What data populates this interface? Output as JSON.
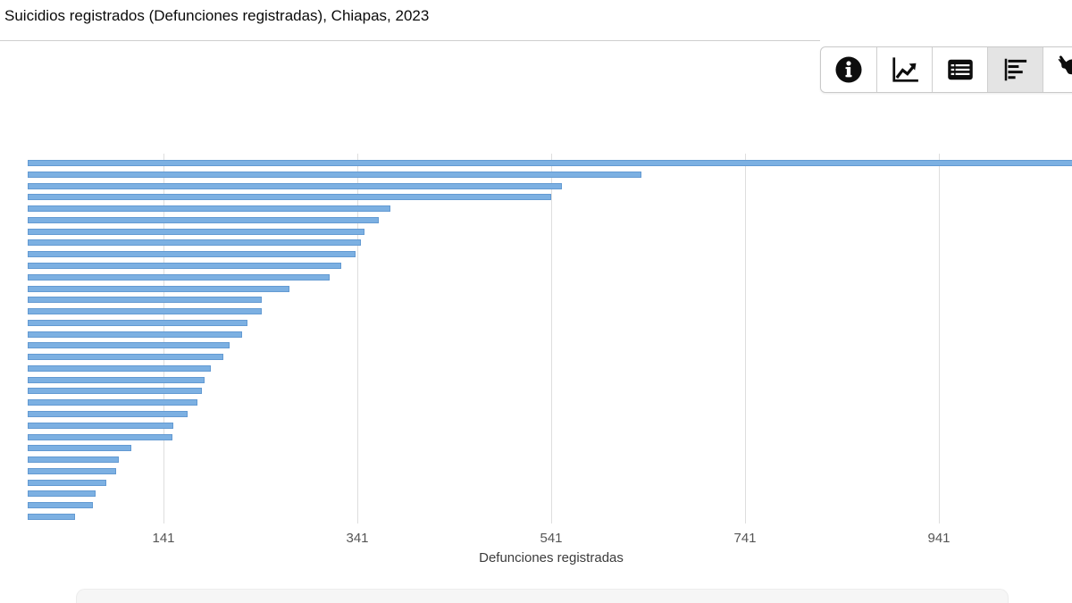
{
  "header": {
    "title": "Suicidios registrados (Defunciones registradas), Chiapas, 2023"
  },
  "toolbar": {
    "buttons": [
      {
        "icon": "info-icon",
        "active": false
      },
      {
        "icon": "line-chart-icon",
        "active": false
      },
      {
        "icon": "table-icon",
        "active": false
      },
      {
        "icon": "bar-chart-icon",
        "active": true
      },
      {
        "icon": "mexico-map-icon",
        "active": false
      }
    ]
  },
  "chart_data": {
    "type": "bar",
    "orientation": "horizontal",
    "title": "Suicidios registrados (Defunciones registradas), Chiapas, 2023",
    "xlabel": "Defunciones registradas",
    "ylabel": "",
    "x_ticks": [
      141,
      341,
      541,
      741,
      941
    ],
    "values": [
      1120,
      634,
      552,
      541,
      375,
      363,
      348,
      345,
      339,
      324,
      312,
      271,
      242,
      242,
      228,
      222,
      209,
      203,
      190,
      183,
      181,
      176,
      166,
      151,
      150,
      108,
      95,
      92,
      82,
      71,
      68,
      50
    ],
    "bar_count": 32,
    "first_bar_clipped_at_right_edge": true,
    "grid": true,
    "colors": {
      "bar_fill": "#7cb0e2",
      "bar_border": "#639ad2",
      "gridline": "#dedede",
      "tick_text": "#555555",
      "axis_label_text": "#3c3c3c"
    }
  }
}
